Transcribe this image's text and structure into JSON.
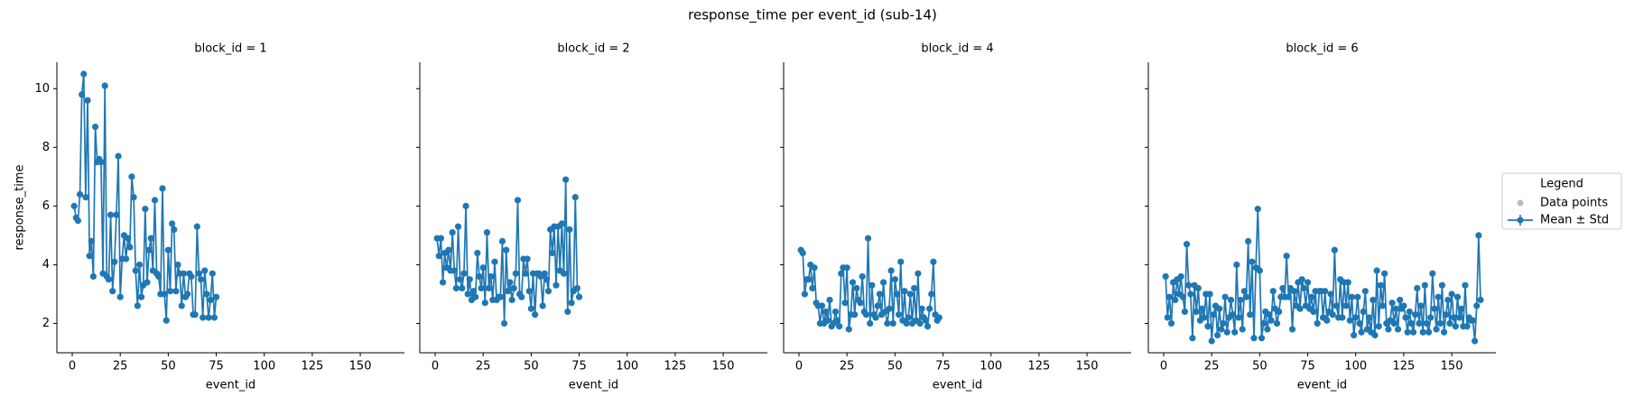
{
  "title": "response_time per event_id (sub-14)",
  "legend": {
    "title": "Legend",
    "position": "right",
    "entries": [
      {
        "name": "Data points",
        "color": "#bbbbbb"
      },
      {
        "name": "Mean ± Std",
        "color": "#1f77b4"
      }
    ]
  },
  "chart_data": [
    {
      "type": "line",
      "title": "block_id = 1",
      "xlabel": "event_id",
      "ylabel": "response_time",
      "xlim": [
        -8,
        173
      ],
      "ylim": [
        1.0,
        10.9
      ],
      "xticks": [
        0,
        25,
        50,
        75,
        100,
        125,
        150
      ],
      "yticks": [
        2,
        4,
        6,
        8,
        10
      ],
      "x": [
        1,
        2,
        3,
        4,
        5,
        6,
        7,
        8,
        9,
        10,
        11,
        12,
        13,
        14,
        15,
        16,
        17,
        18,
        19,
        20,
        21,
        22,
        23,
        24,
        25,
        26,
        27,
        28,
        29,
        30,
        31,
        32,
        33,
        34,
        35,
        36,
        37,
        38,
        39,
        40,
        41,
        42,
        43,
        44,
        45,
        46,
        47,
        48,
        49,
        50,
        51,
        52,
        53,
        54,
        55,
        56,
        57,
        58,
        59,
        60,
        61,
        62,
        63,
        64,
        65,
        66,
        67,
        68,
        69,
        70,
        71,
        72,
        73,
        74,
        75
      ],
      "series": [
        {
          "color": "#1f77b4",
          "values": [
            6.0,
            5.6,
            5.5,
            6.4,
            9.8,
            10.5,
            6.3,
            9.6,
            4.3,
            4.8,
            3.6,
            8.7,
            7.5,
            7.6,
            7.5,
            3.7,
            10.1,
            3.6,
            3.5,
            5.7,
            3.1,
            4.1,
            5.7,
            7.7,
            2.9,
            4.2,
            5.0,
            4.2,
            4.9,
            4.6,
            7.0,
            6.3,
            3.8,
            2.6,
            4.0,
            2.9,
            3.3,
            5.9,
            3.4,
            4.5,
            4.9,
            3.8,
            6.2,
            3.7,
            3.6,
            3.0,
            6.6,
            3.0,
            2.1,
            4.5,
            3.1,
            5.4,
            5.2,
            3.1,
            4.0,
            3.7,
            2.6,
            3.7,
            2.9,
            3.0,
            3.7,
            3.6,
            2.3,
            2.3,
            5.3,
            3.7,
            3.5,
            2.2,
            3.8,
            3.0,
            2.2,
            2.8,
            3.7,
            2.2,
            2.9
          ]
        }
      ]
    },
    {
      "type": "line",
      "title": "block_id = 2",
      "xlabel": "event_id",
      "xlim": [
        -8,
        173
      ],
      "ylim": [
        1.0,
        10.9
      ],
      "xticks": [
        0,
        25,
        50,
        75,
        100,
        125,
        150
      ],
      "yticks": [
        2,
        4,
        6,
        8,
        10
      ],
      "x": [
        1,
        2,
        3,
        4,
        5,
        6,
        7,
        8,
        9,
        10,
        11,
        12,
        13,
        14,
        15,
        16,
        17,
        18,
        19,
        20,
        21,
        22,
        23,
        24,
        25,
        26,
        27,
        28,
        29,
        30,
        31,
        32,
        33,
        34,
        35,
        36,
        37,
        38,
        39,
        40,
        41,
        42,
        43,
        44,
        45,
        46,
        47,
        48,
        49,
        50,
        51,
        52,
        53,
        54,
        55,
        56,
        57,
        58,
        59,
        60,
        61,
        62,
        63,
        64,
        65,
        66,
        67,
        68,
        69,
        70,
        71,
        72,
        73,
        74,
        75
      ],
      "series": [
        {
          "color": "#1f77b4",
          "values": [
            4.9,
            4.3,
            4.9,
            3.4,
            4.4,
            3.9,
            4.5,
            3.8,
            5.1,
            3.8,
            3.2,
            5.3,
            3.5,
            3.2,
            3.7,
            6.0,
            3.0,
            3.5,
            2.8,
            3.1,
            2.9,
            4.4,
            3.6,
            3.2,
            3.9,
            2.7,
            5.1,
            3.2,
            3.6,
            2.8,
            4.1,
            2.8,
            2.9,
            2.9,
            4.8,
            2.0,
            4.5,
            3.1,
            3.4,
            2.8,
            3.2,
            3.7,
            6.2,
            3.0,
            2.9,
            4.2,
            3.7,
            4.2,
            3.1,
            2.5,
            3.7,
            2.3,
            3.7,
            3.7,
            3.6,
            2.6,
            3.7,
            3.5,
            3.1,
            5.2,
            4.4,
            5.3,
            3.3,
            5.3,
            3.8,
            5.4,
            3.7,
            6.9,
            2.4,
            5.2,
            2.7,
            3.1,
            6.3,
            3.2,
            2.9
          ]
        }
      ]
    },
    {
      "type": "line",
      "title": "block_id = 4",
      "xlabel": "event_id",
      "xlim": [
        -8,
        173
      ],
      "ylim": [
        1.0,
        10.9
      ],
      "xticks": [
        0,
        25,
        50,
        75,
        100,
        125,
        150
      ],
      "yticks": [
        2,
        4,
        6,
        8,
        10
      ],
      "x": [
        1,
        2,
        3,
        4,
        5,
        6,
        7,
        8,
        9,
        10,
        11,
        12,
        13,
        14,
        15,
        16,
        17,
        18,
        19,
        20,
        21,
        22,
        23,
        24,
        25,
        26,
        27,
        28,
        29,
        30,
        31,
        32,
        33,
        34,
        35,
        36,
        37,
        38,
        39,
        40,
        41,
        42,
        43,
        44,
        45,
        46,
        47,
        48,
        49,
        50,
        51,
        52,
        53,
        54,
        55,
        56,
        57,
        58,
        59,
        60,
        61,
        62,
        63,
        64,
        65,
        66,
        67,
        68,
        69,
        70,
        71,
        72,
        73
      ],
      "series": [
        {
          "color": "#1f77b4",
          "values": [
            4.5,
            4.4,
            3.0,
            3.5,
            3.5,
            4.0,
            3.2,
            3.9,
            2.7,
            2.6,
            2.0,
            2.6,
            2.0,
            2.4,
            2.1,
            2.8,
            1.9,
            2.0,
            2.4,
            2.1,
            1.9,
            3.7,
            3.9,
            2.7,
            3.9,
            1.8,
            2.3,
            3.4,
            2.3,
            3.2,
            2.8,
            2.7,
            3.6,
            2.4,
            2.3,
            4.9,
            2.0,
            3.3,
            2.3,
            2.2,
            2.6,
            3.0,
            2.3,
            3.4,
            2.4,
            2.0,
            2.5,
            3.8,
            2.0,
            3.5,
            3.0,
            2.3,
            4.1,
            2.1,
            3.1,
            2.0,
            2.2,
            3.0,
            2.0,
            3.2,
            2.1,
            3.7,
            2.0,
            2.5,
            2.2,
            2.1,
            1.9,
            2.5,
            3.0,
            4.1,
            2.3,
            2.1,
            2.2
          ]
        }
      ]
    },
    {
      "type": "line",
      "title": "block_id = 6",
      "xlabel": "event_id",
      "xlim": [
        -8,
        173
      ],
      "ylim": [
        1.0,
        10.9
      ],
      "xticks": [
        0,
        25,
        50,
        75,
        100,
        125,
        150
      ],
      "yticks": [
        2,
        4,
        6,
        8,
        10
      ],
      "x": [
        1,
        2,
        3,
        4,
        5,
        6,
        7,
        8,
        9,
        10,
        11,
        12,
        13,
        14,
        15,
        16,
        17,
        18,
        19,
        20,
        21,
        22,
        23,
        24,
        25,
        26,
        27,
        28,
        29,
        30,
        31,
        32,
        33,
        34,
        35,
        36,
        37,
        38,
        39,
        40,
        41,
        42,
        43,
        44,
        45,
        46,
        47,
        48,
        49,
        50,
        51,
        52,
        53,
        54,
        55,
        56,
        57,
        58,
        59,
        60,
        61,
        62,
        63,
        64,
        65,
        66,
        67,
        68,
        69,
        70,
        71,
        72,
        73,
        74,
        75,
        76,
        77,
        78,
        79,
        80,
        81,
        82,
        83,
        84,
        85,
        86,
        87,
        88,
        89,
        90,
        91,
        92,
        93,
        94,
        95,
        96,
        97,
        98,
        99,
        100,
        101,
        102,
        103,
        104,
        105,
        106,
        107,
        108,
        109,
        110,
        111,
        112,
        113,
        114,
        115,
        116,
        117,
        118,
        119,
        120,
        121,
        122,
        123,
        124,
        125,
        126,
        127,
        128,
        129,
        130,
        131,
        132,
        133,
        134,
        135,
        136,
        137,
        138,
        139,
        140,
        141,
        142,
        143,
        144,
        145,
        146,
        147,
        148,
        149,
        150,
        151,
        152,
        153,
        154,
        155,
        156,
        157,
        158,
        159,
        160,
        161,
        162,
        163,
        164,
        165
      ],
      "series": [
        {
          "color": "#1f77b4",
          "values": [
            3.6,
            2.2,
            2.9,
            2.0,
            3.4,
            2.8,
            3.5,
            3.0,
            3.6,
            2.9,
            2.4,
            4.7,
            3.3,
            3.0,
            1.5,
            3.3,
            2.4,
            3.2,
            2.1,
            2.5,
            2.2,
            3.0,
            1.9,
            3.0,
            1.4,
            2.3,
            2.6,
            1.6,
            2.5,
            1.8,
            2.0,
            2.9,
            1.7,
            2.2,
            2.8,
            2.3,
            1.7,
            4.0,
            2.2,
            2.8,
            1.8,
            3.1,
            2.9,
            4.8,
            2.3,
            4.1,
            1.5,
            3.9,
            5.9,
            3.8,
            1.5,
            2.0,
            2.4,
            1.8,
            2.3,
            2.1,
            3.1,
            2.5,
            2.0,
            2.4,
            2.9,
            3.2,
            2.9,
            4.3,
            2.9,
            3.2,
            1.8,
            3.1,
            2.6,
            3.4,
            2.5,
            3.5,
            3.2,
            2.6,
            3.4,
            2.5,
            2.9,
            2.4,
            3.1,
            2.0,
            3.1,
            3.1,
            2.2,
            3.1,
            2.1,
            2.4,
            3.0,
            2.3,
            4.5,
            2.6,
            2.2,
            3.5,
            2.2,
            3.4,
            2.6,
            3.4,
            2.1,
            2.9,
            1.6,
            2.2,
            2.9,
            2.0,
            1.7,
            2.4,
            3.1,
            1.8,
            2.2,
            1.7,
            2.8,
            1.6,
            3.8,
            1.9,
            3.3,
            2.6,
            3.7,
            2.0,
            1.8,
            2.1,
            2.7,
            2.0,
            2.5,
            1.8,
            2.8,
            2.5,
            2.6,
            2.2,
            1.7,
            2.4,
            2.0,
            1.7,
            2.3,
            3.2,
            2.0,
            2.6,
            1.7,
            3.3,
            2.0,
            1.7,
            2.2,
            3.7,
            2.5,
            1.8,
            2.9,
            2.0,
            3.3,
            1.7,
            2.3,
            2.8,
            2.0,
            3.0,
            2.2,
            1.9,
            2.9,
            2.2,
            2.5,
            1.9,
            3.3,
            1.9,
            2.2,
            2.1,
            2.1,
            1.4,
            2.6,
            5.0,
            2.8
          ]
        }
      ]
    }
  ]
}
